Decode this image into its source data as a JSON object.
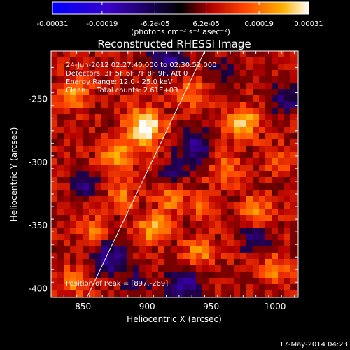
{
  "chart_data": {
    "type": "heatmap",
    "title": "Reconstructed RHESSI Image",
    "xlabel": "Heliocentric X (arcsec)",
    "ylabel": "Heliocentric Y (arcsec)",
    "xlim": [
      825,
      1018
    ],
    "ylim": [
      -407,
      -212
    ],
    "x_ticks": [
      850,
      900,
      950,
      1000
    ],
    "y_ticks": [
      -400,
      -350,
      -300,
      -250
    ],
    "colorbar": {
      "range": [
        -0.00031,
        0.00031
      ],
      "tick_values": [
        -0.00031,
        -0.00019,
        -6.2e-05,
        6.2e-05,
        0.00019,
        0.00031
      ],
      "tick_labels": [
        "-0.00031",
        "-0.00019",
        "-6.2e-05",
        "6.2e-05",
        "0.00019",
        "0.00031"
      ],
      "unit_label": "(photons cm⁻² s⁻¹ asec⁻²)"
    },
    "annotations": [
      "24-Jun-2012 02:27:40.000 to 02:30:52.000",
      "Detectors: 3F 5F 6F 7F 8F 9F, Att 0",
      "Energy Range: 12.0 - 25.0 keV",
      "Clean     Total counts: 2.61E+03"
    ],
    "peak_label": "Position of Peak = [897,-269]",
    "peak_position": [
      897,
      -269
    ],
    "limb_line": [
      [
        853,
        -407
      ],
      [
        945,
        -212
      ]
    ],
    "sources": [
      {
        "x": 898,
        "y": -272,
        "peak": 1.0,
        "sigma": 10
      },
      {
        "x": 876,
        "y": -294,
        "peak": 0.55,
        "sigma": 9
      },
      {
        "x": 880,
        "y": -328,
        "peak": 0.5,
        "sigma": 8
      },
      {
        "x": 905,
        "y": -352,
        "peak": 0.75,
        "sigma": 8
      },
      {
        "x": 918,
        "y": -330,
        "peak": 0.45,
        "sigma": 7
      },
      {
        "x": 975,
        "y": -268,
        "peak": 0.7,
        "sigma": 9
      },
      {
        "x": 960,
        "y": -305,
        "peak": 0.45,
        "sigma": 10
      },
      {
        "x": 985,
        "y": -338,
        "peak": 0.55,
        "sigma": 8
      },
      {
        "x": 940,
        "y": -372,
        "peak": 0.5,
        "sigma": 9
      },
      {
        "x": 1000,
        "y": -385,
        "peak": 0.5,
        "sigma": 8
      },
      {
        "x": 842,
        "y": -395,
        "peak": 0.45,
        "sigma": 8
      },
      {
        "x": 843,
        "y": -245,
        "peak": 0.5,
        "sigma": 9
      },
      {
        "x": 1005,
        "y": -300,
        "peak": 0.4,
        "sigma": 8
      },
      {
        "x": 935,
        "y": -245,
        "peak": 0.45,
        "sigma": 8
      },
      {
        "x": 860,
        "y": -355,
        "peak": 0.45,
        "sigma": 8
      },
      {
        "x": 940,
        "y": -335,
        "peak": 0.35,
        "sigma": 7
      }
    ],
    "dark_regions": [
      {
        "x": 915,
        "y": -218,
        "depth": 0.6,
        "sigma": 9
      },
      {
        "x": 938,
        "y": -290,
        "depth": 0.55,
        "sigma": 10
      },
      {
        "x": 870,
        "y": -375,
        "depth": 0.55,
        "sigma": 10
      },
      {
        "x": 930,
        "y": -395,
        "depth": 0.6,
        "sigma": 10
      },
      {
        "x": 1010,
        "y": -250,
        "depth": 0.5,
        "sigma": 8
      },
      {
        "x": 985,
        "y": -360,
        "depth": 0.45,
        "sigma": 7
      },
      {
        "x": 852,
        "y": -318,
        "depth": 0.45,
        "sigma": 7
      },
      {
        "x": 920,
        "y": -308,
        "depth": 0.35,
        "sigma": 6
      },
      {
        "x": 960,
        "y": -230,
        "depth": 0.4,
        "sigma": 8
      },
      {
        "x": 890,
        "y": -395,
        "depth": 0.4,
        "sigma": 7
      }
    ]
  },
  "footer": {
    "timestamp": "17-May-2014 04:23"
  }
}
